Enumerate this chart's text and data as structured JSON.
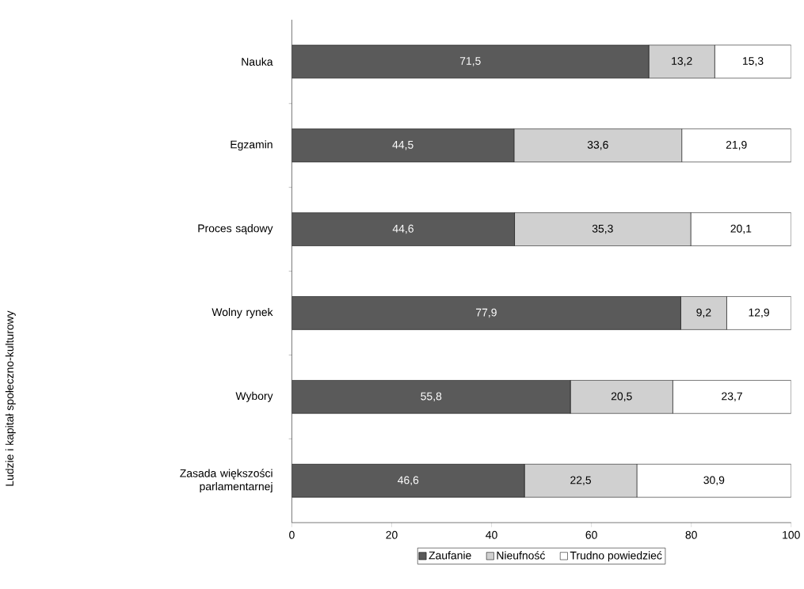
{
  "chart_data": {
    "type": "bar",
    "orientation": "horizontal",
    "stacked": true,
    "legend": "bottom",
    "grid": false,
    "categories": [
      "Nauka",
      "Egzamin",
      "Proces sądowy",
      "Wolny rynek",
      "Wybory",
      "Zasada większości parlamentarnej"
    ],
    "series": [
      {
        "name": "Zaufanie",
        "color": "#5a5a5a",
        "values": [
          71.5,
          44.5,
          44.6,
          77.9,
          55.8,
          46.6
        ],
        "value_labels": [
          "71,5",
          "44,5",
          "44,6",
          "77,9",
          "55,8",
          "46,6"
        ]
      },
      {
        "name": "Nieufność",
        "color": "#d0d0d0",
        "values": [
          13.2,
          33.6,
          35.3,
          9.2,
          20.5,
          22.5
        ],
        "value_labels": [
          "13,2",
          "33,6",
          "35,3",
          "9,2",
          "20,5",
          "22,5"
        ]
      },
      {
        "name": "Trudno powiedzieć",
        "color": "#ffffff",
        "values": [
          15.3,
          21.9,
          20.1,
          12.9,
          23.7,
          30.9
        ],
        "value_labels": [
          "15,3",
          "21,9",
          "20,1",
          "12,9",
          "23,7",
          "30,9"
        ]
      }
    ],
    "xlim": [
      0,
      100
    ],
    "xticks": [
      0,
      20,
      40,
      60,
      80,
      100
    ],
    "annotations": [
      "Ludzie i kapitał społeczno-kulturowy"
    ]
  }
}
